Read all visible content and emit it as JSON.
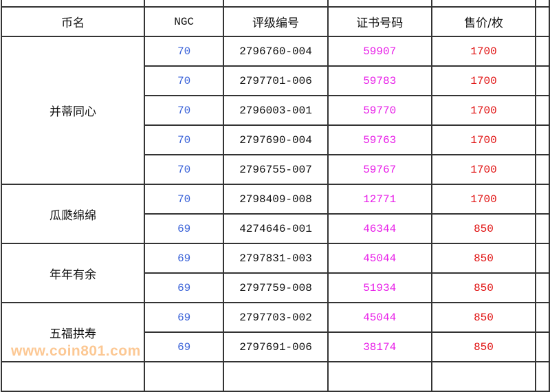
{
  "header": {
    "coin_name": "币名",
    "ngc": "NGC",
    "grade_no": "评级编号",
    "cert_no": "证书号码",
    "price": "售价/枚"
  },
  "colors": {
    "grade": "#3a62d8",
    "cert": "#e81ee8",
    "price": "#e01010",
    "border": "#333333"
  },
  "groups": [
    {
      "name": "并蒂同心",
      "rows": [
        {
          "ngc": "70",
          "grade_no": "2796760-004",
          "cert_no": "59907",
          "price": "1700"
        },
        {
          "ngc": "70",
          "grade_no": "2797701-006",
          "cert_no": "59783",
          "price": "1700"
        },
        {
          "ngc": "70",
          "grade_no": "2796003-001",
          "cert_no": "59770",
          "price": "1700"
        },
        {
          "ngc": "70",
          "grade_no": "2797690-004",
          "cert_no": "59763",
          "price": "1700"
        },
        {
          "ngc": "70",
          "grade_no": "2796755-007",
          "cert_no": "59767",
          "price": "1700"
        }
      ]
    },
    {
      "name": "瓜瓞绵绵",
      "rows": [
        {
          "ngc": "70",
          "grade_no": "2798409-008",
          "cert_no": "12771",
          "price": "1700"
        },
        {
          "ngc": "69",
          "grade_no": "4274646-001",
          "cert_no": "46344",
          "price": "850"
        }
      ]
    },
    {
      "name": "年年有余",
      "rows": [
        {
          "ngc": "69",
          "grade_no": "2797831-003",
          "cert_no": "45044",
          "price": "850"
        },
        {
          "ngc": "69",
          "grade_no": "2797759-008",
          "cert_no": "51934",
          "price": "850"
        }
      ]
    },
    {
      "name": "五福拱寿",
      "rows": [
        {
          "ngc": "69",
          "grade_no": "2797703-002",
          "cert_no": "45044",
          "price": "850"
        },
        {
          "ngc": "69",
          "grade_no": "2797691-006",
          "cert_no": "38174",
          "price": "850"
        }
      ]
    }
  ],
  "watermark": "www.coin801.com"
}
